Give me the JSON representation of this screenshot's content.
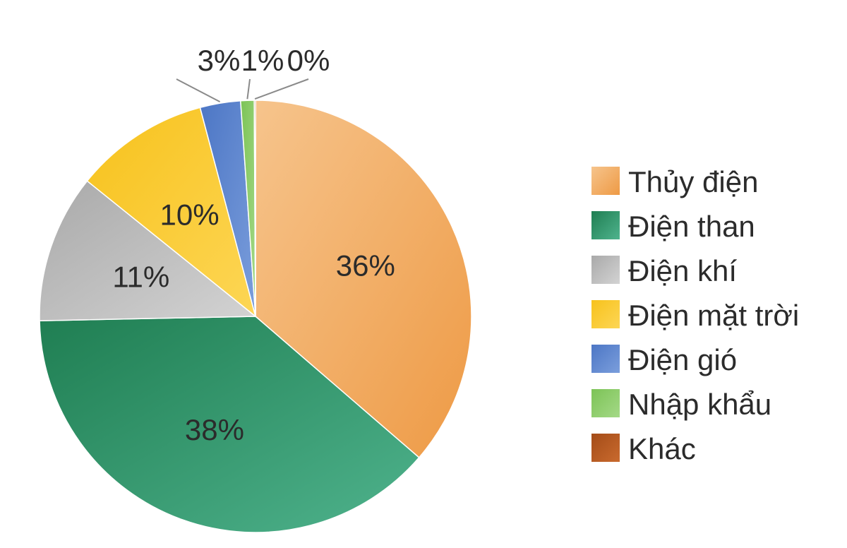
{
  "chart_data": {
    "type": "pie",
    "title": "",
    "legend_position": "right",
    "categories": [
      "Thủy điện",
      "Điện than",
      "Điện khí",
      "Điện mặt trời",
      "Điện gió",
      "Nhập khẩu",
      "Khác"
    ],
    "values": [
      36,
      38,
      11,
      10,
      3,
      1,
      0
    ],
    "value_labels": [
      "36%",
      "38%",
      "11%",
      "10%",
      "3%",
      "1%",
      "0%"
    ],
    "colors": [
      "#f0a862",
      "#2f9a6c",
      "#bdbdbd",
      "#fcca2f",
      "#5b85cf",
      "#8fce6a",
      "#b85a22"
    ]
  }
}
